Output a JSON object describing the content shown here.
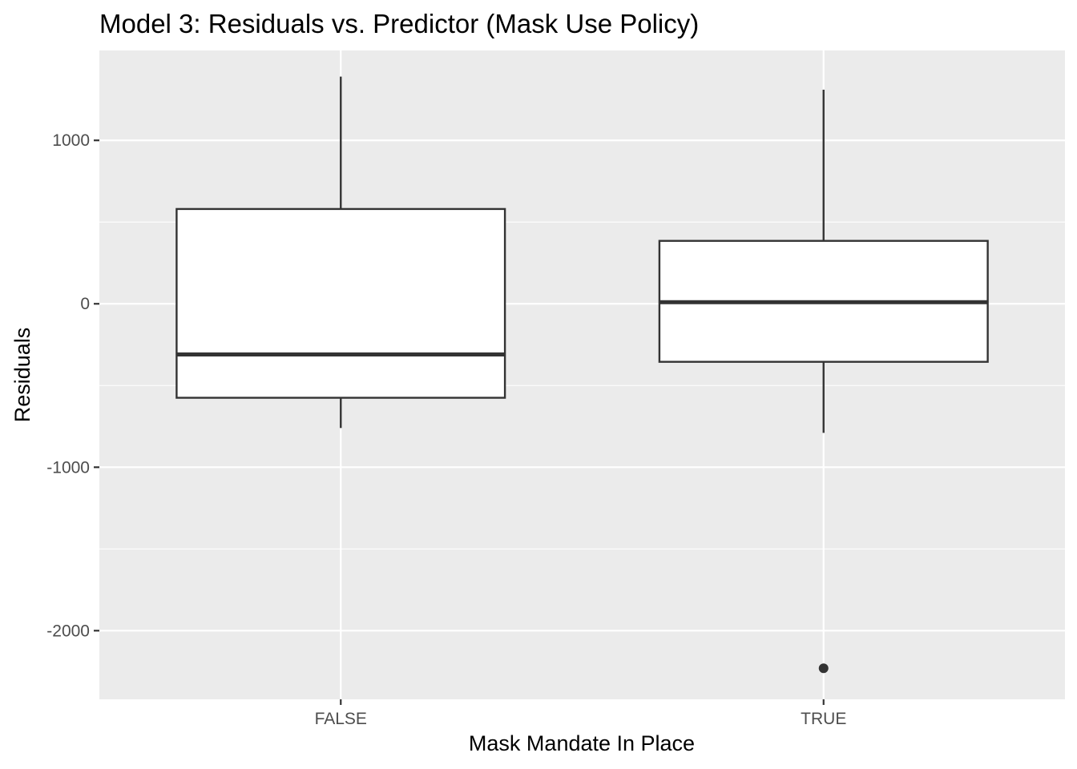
{
  "chart_data": {
    "type": "boxplot",
    "title": "Model 3: Residuals vs. Predictor (Mask Use Policy)",
    "xlabel": "Mask Mandate In Place",
    "ylabel": "Residuals",
    "ylim": [
      -2420,
      1550
    ],
    "yticks": [
      -2000,
      -1000,
      0,
      1000
    ],
    "ytick_labels": [
      "-2000",
      "-1000",
      "0",
      "1000"
    ],
    "minor_yticks": [
      -1500,
      -500,
      500
    ],
    "grid": true,
    "categories": [
      "FALSE",
      "TRUE"
    ],
    "boxes": [
      {
        "category": "FALSE",
        "whisker_low": -760,
        "q1": -575,
        "median": -310,
        "q3": 580,
        "whisker_high": 1390,
        "outliers": []
      },
      {
        "category": "TRUE",
        "whisker_low": -790,
        "q1": -355,
        "median": 10,
        "q3": 385,
        "whisker_high": 1310,
        "outliers": [
          -2230
        ]
      }
    ],
    "colors": {
      "panel_bg": "#ebebeb",
      "grid": "#ffffff",
      "box_fill": "#ffffff",
      "box_line": "#333333",
      "tick": "#333333",
      "tick_label": "#4d4d4d"
    }
  }
}
